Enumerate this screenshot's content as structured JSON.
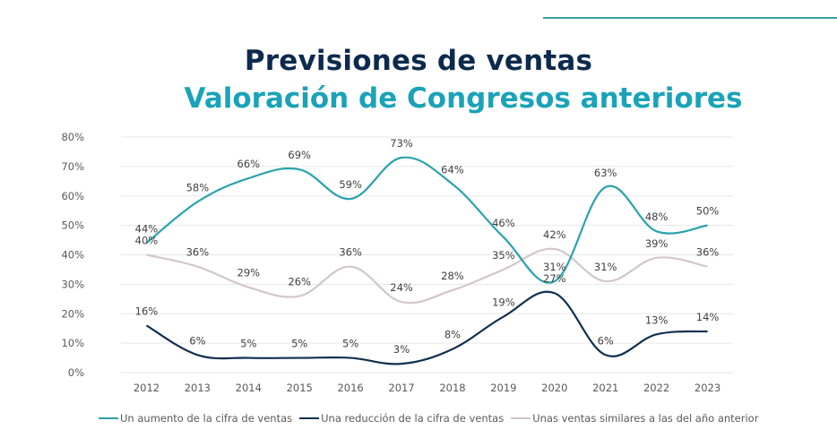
{
  "header": {
    "title": "Previsiones de ventas",
    "subtitle": "Valoración de Congresos anteriores"
  },
  "chart_data": {
    "type": "line",
    "title": "Previsiones de ventas",
    "subtitle": "Valoración de Congresos anteriores",
    "xlabel": "",
    "ylabel": "",
    "categories": [
      "2012",
      "2013",
      "2014",
      "2015",
      "2016",
      "2017",
      "2018",
      "2019",
      "2020",
      "2021",
      "2022",
      "2023"
    ],
    "ylim": [
      0,
      80
    ],
    "yticks": [
      "0%",
      "10%",
      "20%",
      "30%",
      "40%",
      "50%",
      "60%",
      "70%",
      "80%"
    ],
    "grid": true,
    "legend_position": "bottom",
    "smooth": true,
    "series": [
      {
        "name": "Un aumento de la cifra de ventas",
        "color": "#2aa3ad",
        "values": [
          44,
          58,
          66,
          69,
          59,
          73,
          64,
          46,
          31,
          63,
          48,
          50
        ]
      },
      {
        "name": "Una reducción de la cifra de ventas",
        "color": "#10304f",
        "values": [
          16,
          6,
          5,
          5,
          5,
          3,
          8,
          19,
          27,
          6,
          13,
          14
        ]
      },
      {
        "name": "Unas ventas similares a las del año anterior",
        "color": "#d2c6cc",
        "values": [
          40,
          36,
          29,
          26,
          36,
          24,
          28,
          35,
          42,
          31,
          39,
          36
        ]
      }
    ]
  }
}
